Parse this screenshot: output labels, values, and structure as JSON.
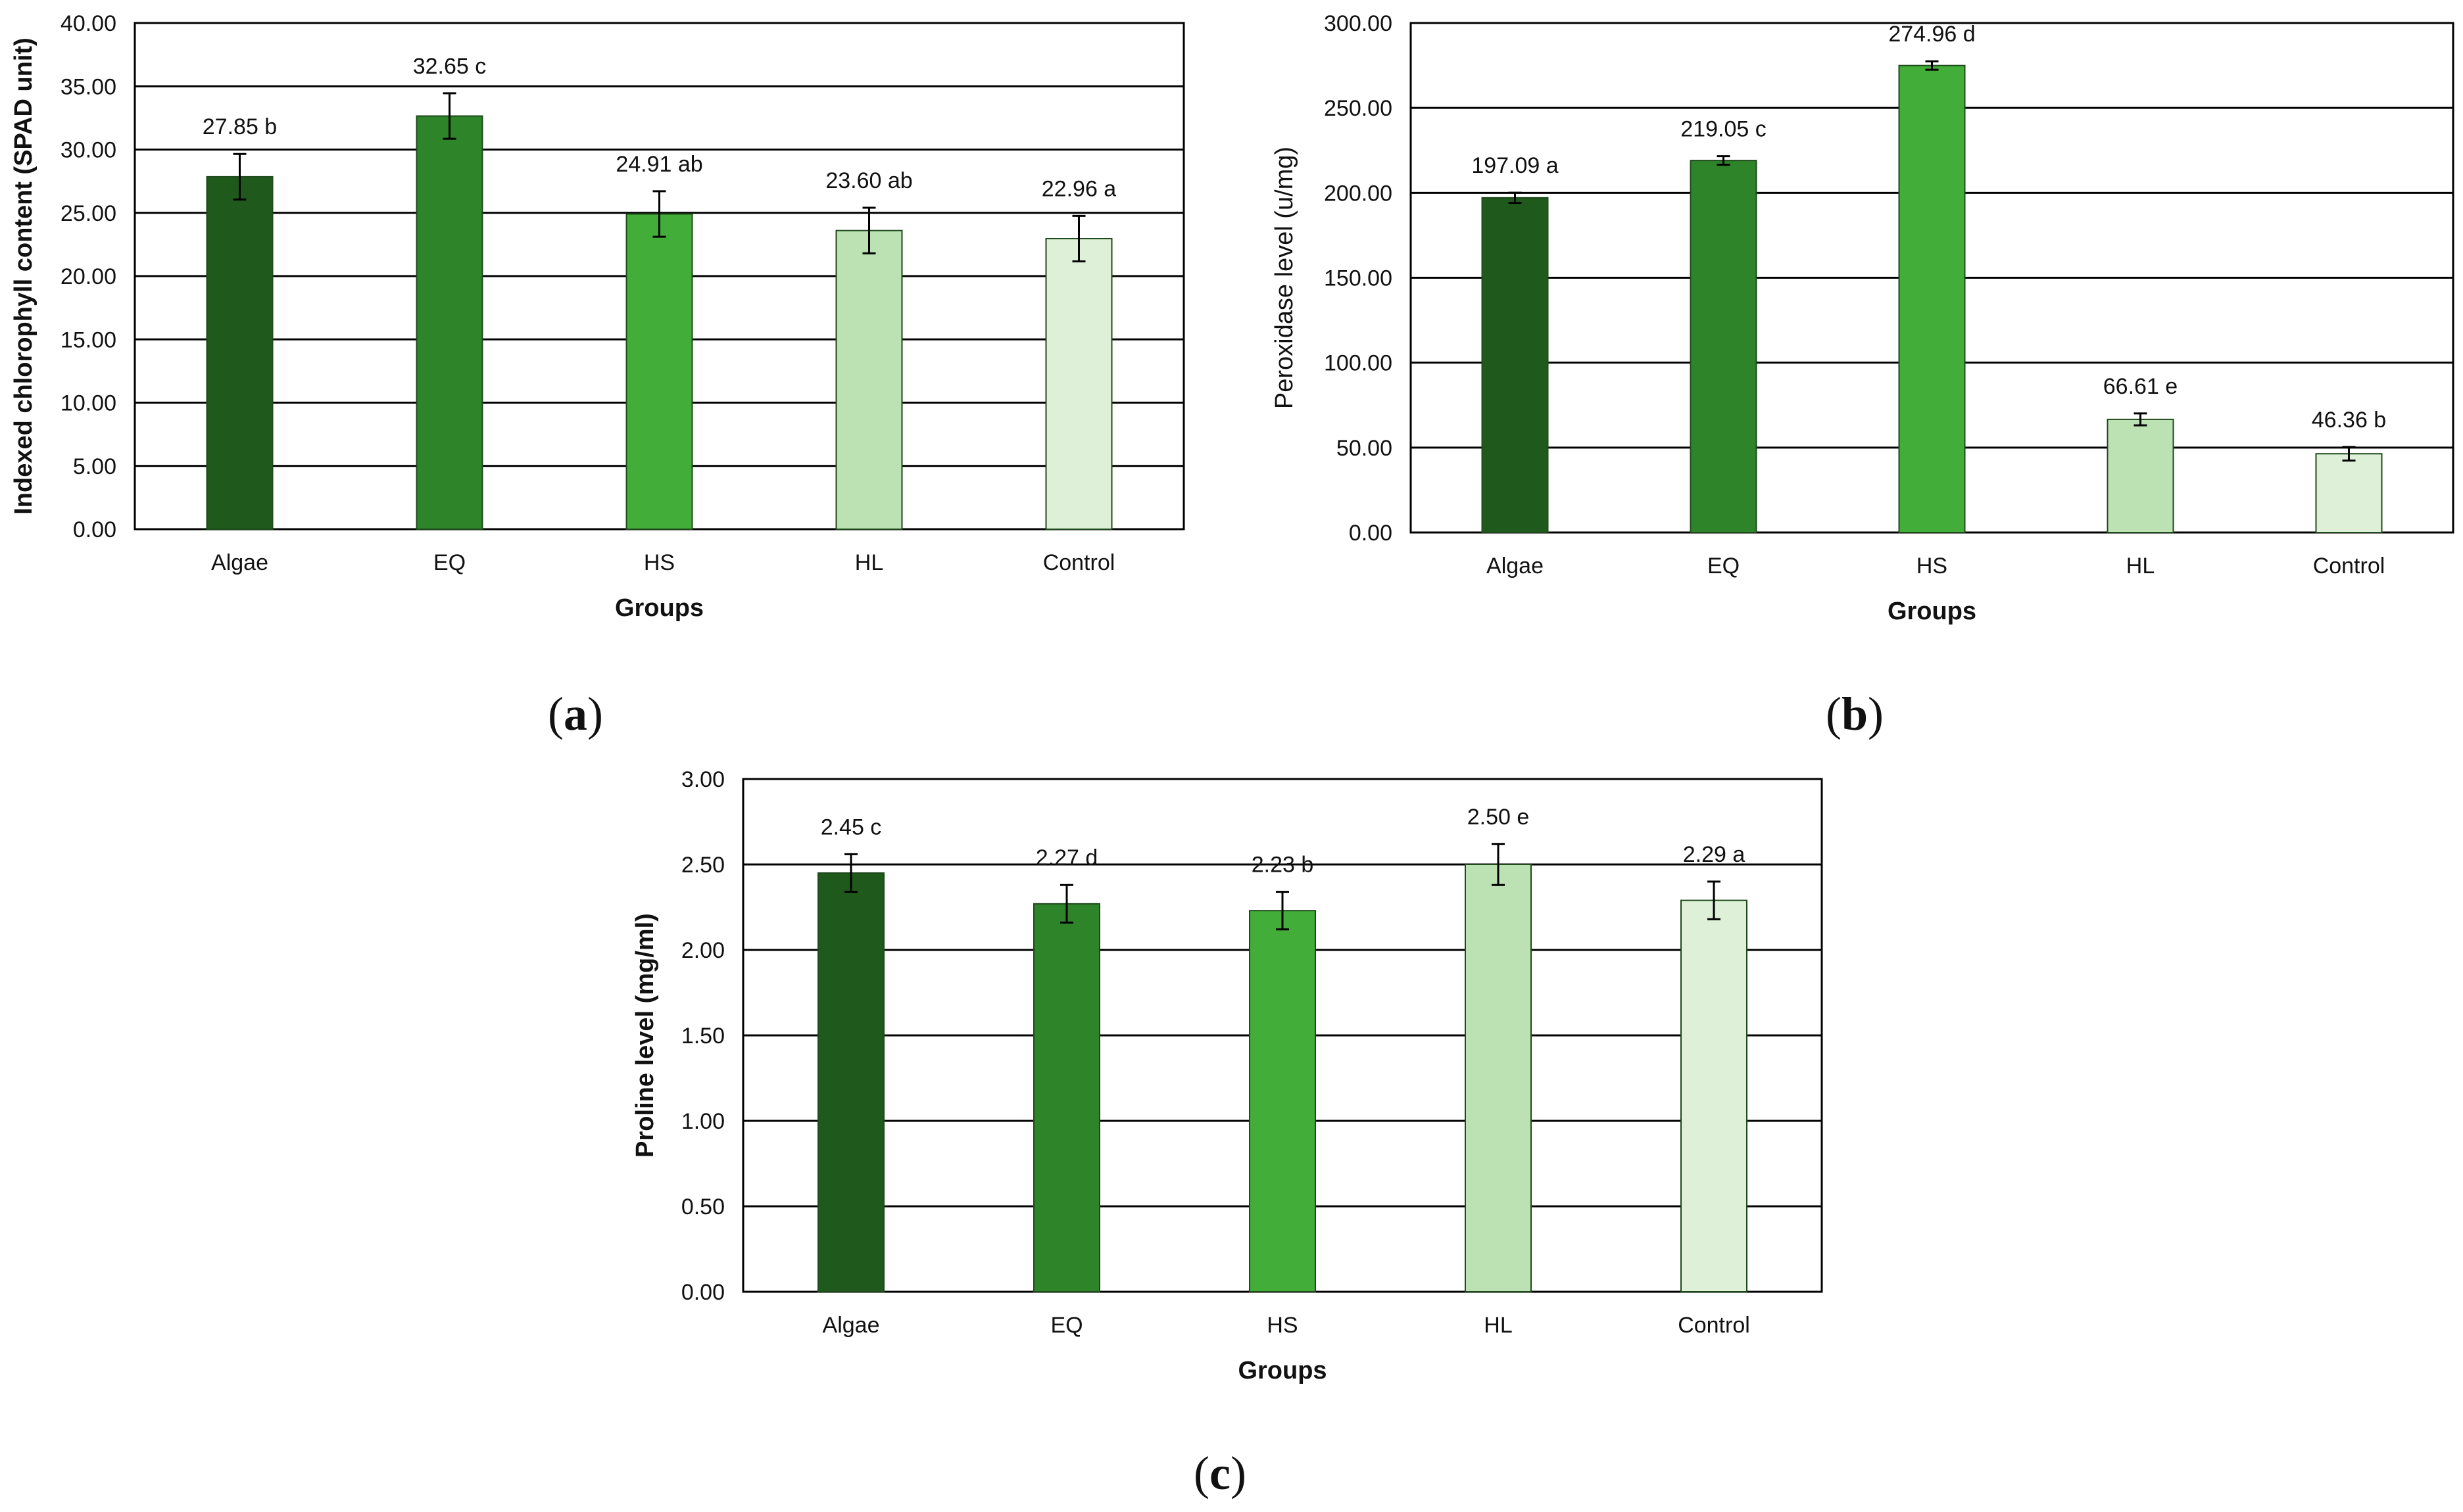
{
  "chart_data": [
    {
      "type": "bar",
      "panel_label": "a",
      "title": "",
      "categories": [
        "Algae",
        "EQ",
        "HS",
        "HL",
        "Control"
      ],
      "values": [
        27.85,
        32.65,
        24.91,
        23.6,
        22.96
      ],
      "errors": [
        1.8,
        1.8,
        1.8,
        1.8,
        1.8
      ],
      "data_labels": [
        "27.85 b",
        "32.65 c",
        "24.91 ab",
        "23.60 ab",
        "22.96 a"
      ],
      "xlabel": "Groups",
      "ylabel": "Indexed chlorophyll content (SPAD unit)",
      "ylabel_bold": true,
      "ylim": [
        0,
        40
      ],
      "ystep": 5,
      "ytick_labels": [
        "0.00",
        "5.00",
        "10.00",
        "15.00",
        "20.00",
        "25.00",
        "30.00",
        "35.00",
        "40.00"
      ],
      "grid": true
    },
    {
      "type": "bar",
      "panel_label": "b",
      "title": "",
      "categories": [
        "Algae",
        "EQ",
        "HS",
        "HL",
        "Control"
      ],
      "values": [
        197.09,
        219.05,
        274.96,
        66.61,
        46.36
      ],
      "errors": [
        3,
        2.5,
        2.5,
        3.5,
        4
      ],
      "data_labels": [
        "197.09 a",
        "219.05 c",
        "274.96 d",
        "66.61 e",
        "46.36 b"
      ],
      "xlabel": "Groups",
      "ylabel": "Peroxidase level (u/mg)",
      "ylabel_bold": false,
      "ylim": [
        0,
        300
      ],
      "ystep": 50,
      "ytick_labels": [
        "0.00",
        "50.00",
        "100.00",
        "150.00",
        "200.00",
        "250.00",
        "300.00"
      ],
      "grid": true
    },
    {
      "type": "bar",
      "panel_label": "c",
      "title": "",
      "categories": [
        "Algae",
        "EQ",
        "HS",
        "HL",
        "Control"
      ],
      "values": [
        2.45,
        2.27,
        2.23,
        2.5,
        2.29
      ],
      "errors": [
        0.11,
        0.11,
        0.11,
        0.12,
        0.11
      ],
      "data_labels": [
        "2.45 c",
        "2.27 d",
        "2.23 b",
        "2.50 e",
        "2.29 a"
      ],
      "xlabel": "Groups",
      "ylabel": "Proline level (mg/ml)",
      "ylabel_bold": true,
      "ylim": [
        0,
        3
      ],
      "ystep": 0.5,
      "ytick_labels": [
        "0.00",
        "0.50",
        "1.00",
        "1.50",
        "2.00",
        "2.50",
        "3.00"
      ],
      "grid": true
    }
  ],
  "colors": {
    "bars": [
      "#1f5a1c",
      "#2e8429",
      "#43ad3a",
      "#bce2b4",
      "#def1d8"
    ],
    "bar_stroke": "#1e4a1b",
    "grid": "#000000",
    "axis": "#000000"
  }
}
